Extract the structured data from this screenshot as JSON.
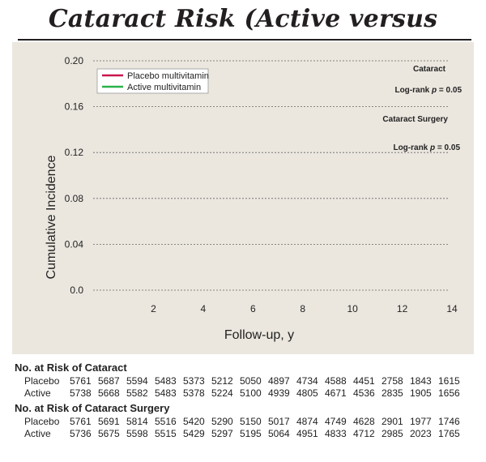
{
  "title": "Cataract Risk (Active versus Placebo)",
  "chart_data": {
    "type": "line",
    "title": "Cataract Risk (Active versus Placebo)",
    "xlabel": "Follow-up, y",
    "ylabel": "Cumulative Incidence",
    "xlim": [
      0,
      14
    ],
    "ylim": [
      0,
      0.2
    ],
    "x_ticks": [
      "2",
      "4",
      "6",
      "8",
      "10",
      "12",
      "14"
    ],
    "y_ticks": [
      "0.20",
      "0.16",
      "0.12",
      "0.08",
      "0.04",
      "0.0"
    ],
    "y_tick_values": [
      0.2,
      0.16,
      0.12,
      0.08,
      0.04,
      0.0
    ],
    "grid": "horizontal dotted",
    "legend": {
      "position": "top-left",
      "entries": [
        {
          "label": "Placebo multivitamin",
          "color": "#c8174b"
        },
        {
          "label": "Active multivitamin",
          "color": "#2ab24a"
        }
      ]
    },
    "annotations": [
      {
        "label": "Cataract",
        "sub_prefix": "Log-rank ",
        "sub_p": "p",
        "sub_suffix": " = 0.05"
      },
      {
        "label": "Cataract Surgery",
        "sub_prefix": "Log-rank ",
        "sub_p": "p",
        "sub_suffix": " = 0.05"
      }
    ],
    "series": [
      {
        "name": "Placebo multivitamin",
        "color": "#c8174b",
        "x": [],
        "y": []
      },
      {
        "name": "Active multivitamin",
        "color": "#2ab24a",
        "x": [],
        "y": []
      }
    ]
  },
  "risk_tables": [
    {
      "title": "No. at Risk of Cataract",
      "rows": [
        {
          "label": "Placebo",
          "values": [
            "5761",
            "5687",
            "5594",
            "5483",
            "5373",
            "5212",
            "5050",
            "4897",
            "4734",
            "4588",
            "4451",
            "2758",
            "1843",
            "1615"
          ]
        },
        {
          "label": "Active",
          "values": [
            "5738",
            "5668",
            "5582",
            "5483",
            "5378",
            "5224",
            "5100",
            "4939",
            "4805",
            "4671",
            "4536",
            "2835",
            "1905",
            "1656"
          ]
        }
      ]
    },
    {
      "title": "No. at Risk of Cataract Surgery",
      "rows": [
        {
          "label": "Placebo",
          "values": [
            "5761",
            "5691",
            "5814",
            "5516",
            "5420",
            "5290",
            "5150",
            "5017",
            "4874",
            "4749",
            "4628",
            "2901",
            "1977",
            "1746"
          ]
        },
        {
          "label": "Active",
          "values": [
            "5736",
            "5675",
            "5598",
            "5515",
            "5429",
            "5297",
            "5195",
            "5064",
            "4951",
            "4833",
            "4712",
            "2985",
            "2023",
            "1765"
          ]
        }
      ]
    }
  ]
}
